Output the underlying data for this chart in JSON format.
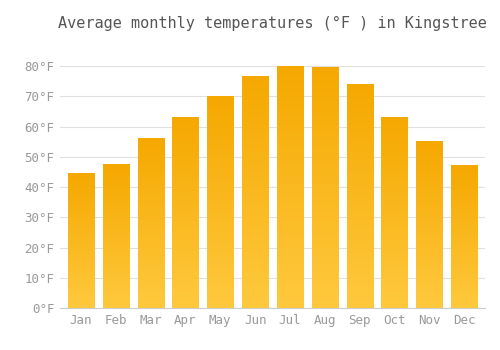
{
  "title": "Average monthly temperatures (°F ) in Kingstree",
  "months": [
    "Jan",
    "Feb",
    "Mar",
    "Apr",
    "May",
    "Jun",
    "Jul",
    "Aug",
    "Sep",
    "Oct",
    "Nov",
    "Dec"
  ],
  "values": [
    44.5,
    47.5,
    56,
    63,
    70,
    76.5,
    80,
    79.5,
    74,
    63,
    55,
    47
  ],
  "bar_color_top": "#FFC93E",
  "bar_color_bottom": "#F5A800",
  "background_color": "#FFFFFF",
  "grid_color": "#E0E0E0",
  "title_fontsize": 11,
  "tick_fontsize": 9,
  "tick_color": "#999999",
  "ylim": [
    0,
    88
  ],
  "yticks": [
    0,
    10,
    20,
    30,
    40,
    50,
    60,
    70,
    80
  ],
  "bar_width": 0.75
}
